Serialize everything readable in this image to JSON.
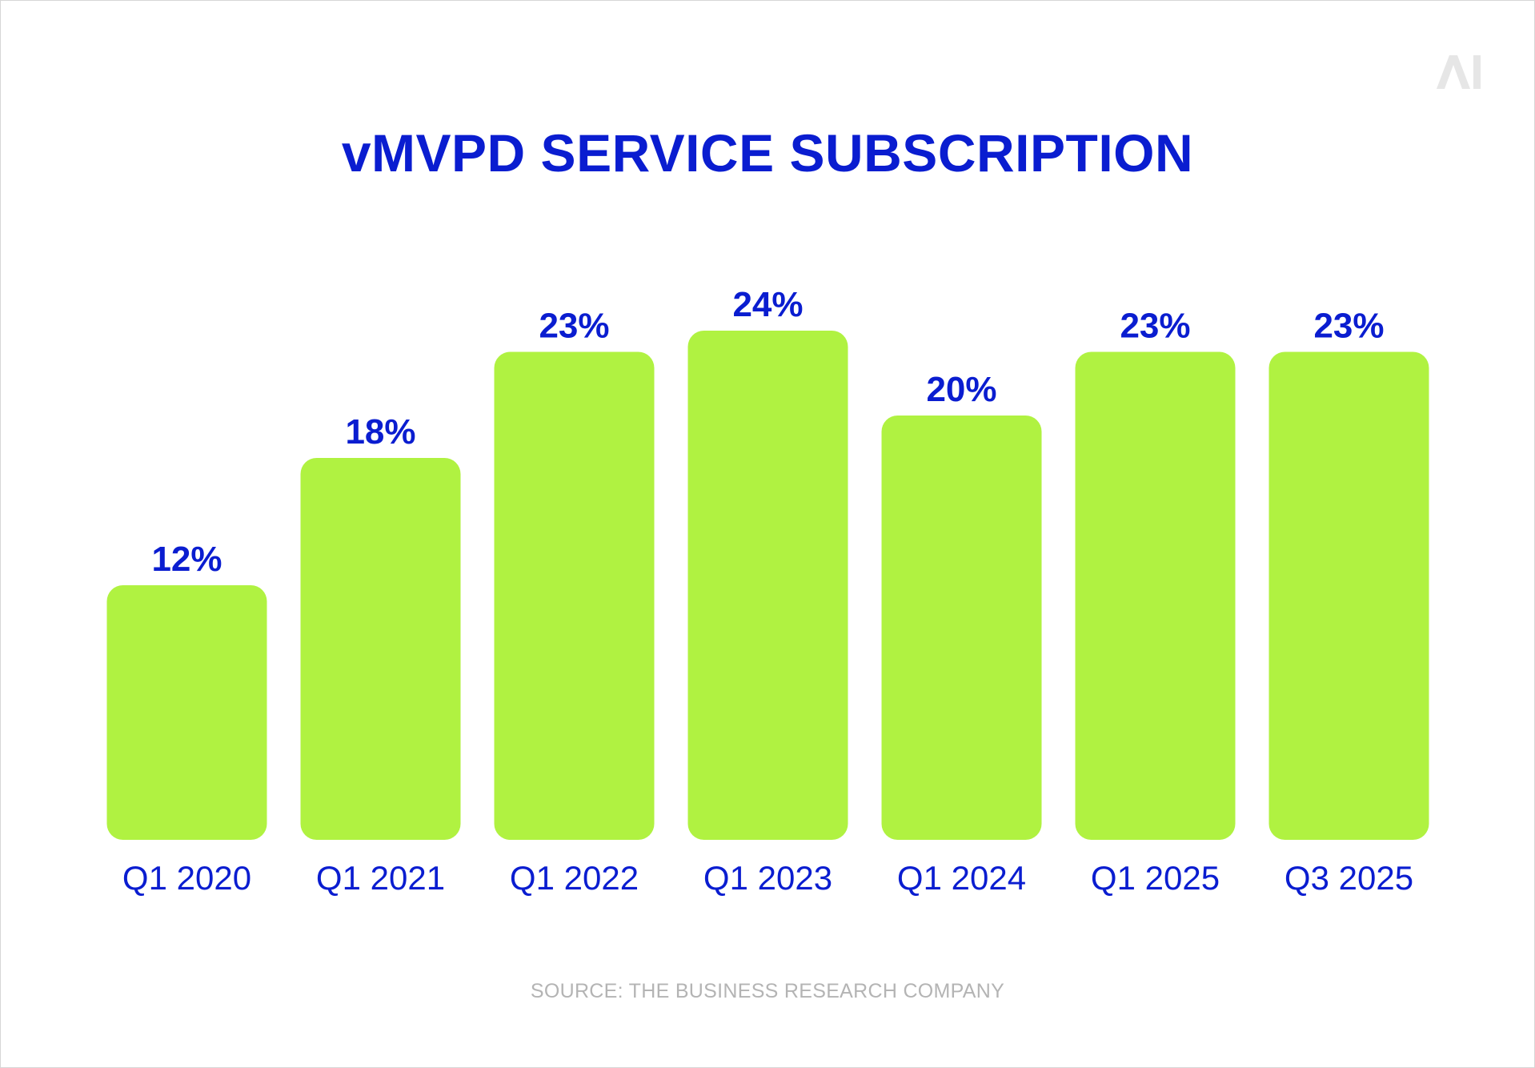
{
  "colors": {
    "bar": "#b0f241",
    "label": "#0a1dd0",
    "source": "#b4b4b4",
    "logo": "#e6e6e6",
    "background": "#ffffff"
  },
  "logo": {
    "icon": "ai-logo-icon"
  },
  "chart_data": {
    "type": "bar",
    "title": "vMVPD SERVICE SUBSCRIPTION",
    "categories": [
      "Q1 2020",
      "Q1 2021",
      "Q1 2022",
      "Q1 2023",
      "Q1 2024",
      "Q1 2025",
      "Q3 2025"
    ],
    "values": [
      12,
      18,
      23,
      24,
      20,
      23,
      23
    ],
    "value_labels": [
      "12%",
      "18%",
      "23%",
      "24%",
      "20%",
      "23%",
      "23%"
    ],
    "ylim": [
      0,
      24
    ],
    "xlabel": "",
    "ylabel": "",
    "grid": false,
    "legend": "none"
  },
  "source": "SOURCE: THE BUSINESS RESEARCH COMPANY"
}
